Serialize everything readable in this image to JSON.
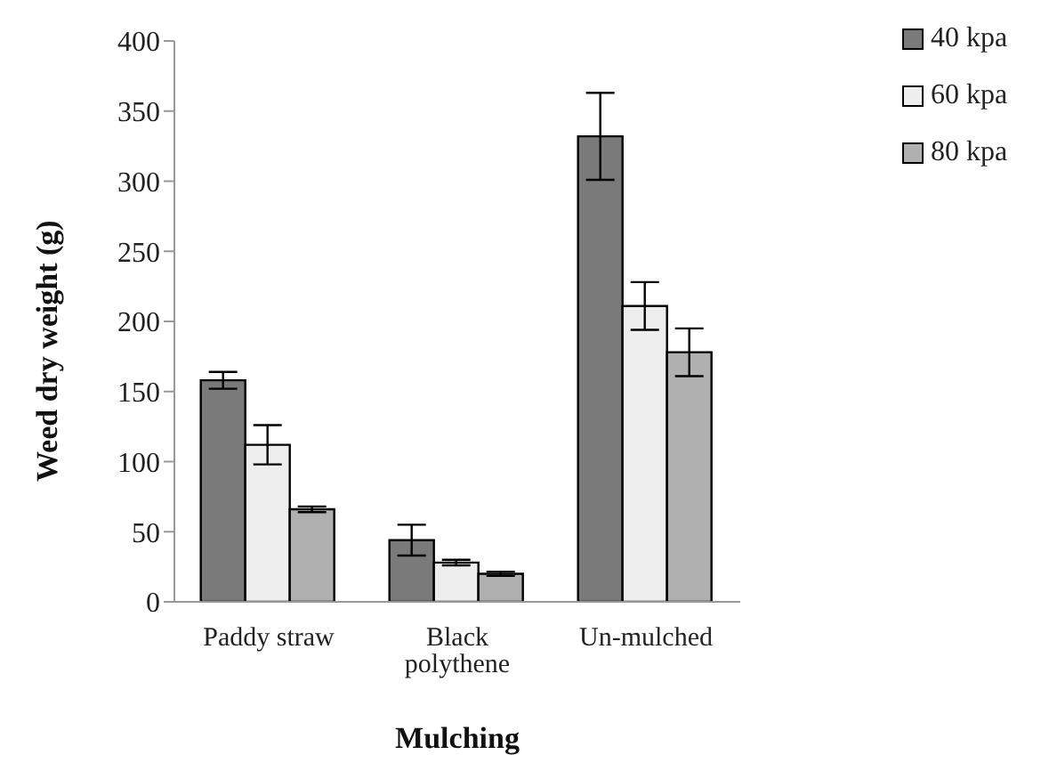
{
  "chart_data": {
    "type": "bar",
    "xlabel": "Mulching",
    "ylabel": "Weed dry weight (g)",
    "categories": [
      "Paddy straw",
      "Black polythene",
      "Un-mulched"
    ],
    "series": [
      {
        "name": "40 kpa",
        "color": "#7a7a7a",
        "values": [
          158,
          44,
          332
        ],
        "errors": [
          6,
          11,
          31
        ]
      },
      {
        "name": "60 kpa",
        "color": "#eeeeee",
        "values": [
          112,
          28,
          211
        ],
        "errors": [
          14,
          2,
          17
        ]
      },
      {
        "name": "80 kpa",
        "color": "#b0b0b0",
        "values": [
          66,
          20,
          178
        ],
        "errors": [
          2,
          1.5,
          17
        ]
      }
    ],
    "ylim": [
      0,
      400
    ],
    "yticks": [
      0,
      50,
      100,
      150,
      200,
      250,
      300,
      350,
      400
    ],
    "grid": false,
    "legend": "top right"
  }
}
